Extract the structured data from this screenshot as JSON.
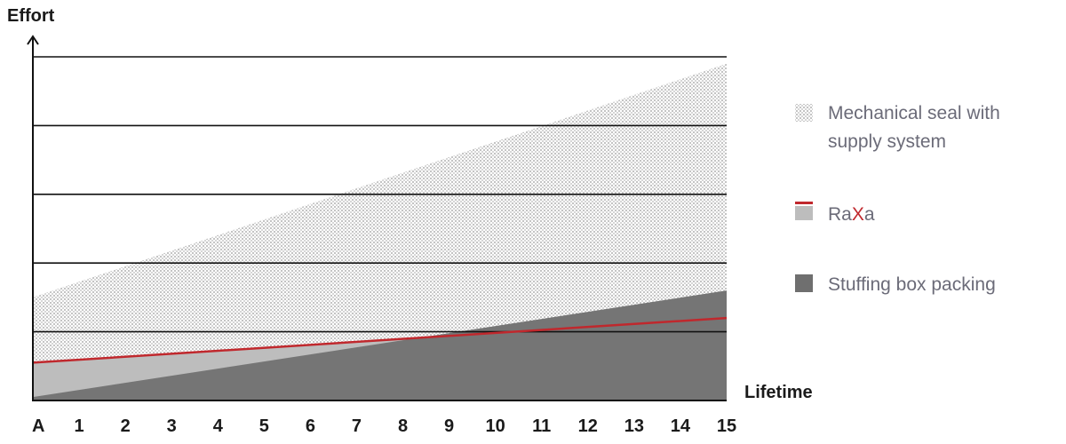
{
  "chart_data": {
    "type": "area",
    "ylabel": "Effort",
    "xlabel": "Lifetime",
    "x_ticks": [
      "A",
      "1",
      "2",
      "3",
      "4",
      "5",
      "6",
      "7",
      "8",
      "9",
      "10",
      "11",
      "12",
      "13",
      "14",
      "15"
    ],
    "x": [
      0,
      15
    ],
    "xlim": [
      0,
      15
    ],
    "ylim": [
      0,
      5
    ],
    "grid": "horizontal",
    "gridlines": [
      1,
      2,
      3,
      4,
      5
    ],
    "legend_position": "right",
    "series": [
      {
        "name": "Mechanical seal with supply system",
        "name_lines": [
          "Mechanical seal with",
          "supply system"
        ],
        "style": "dotted-area",
        "color": "#c8c8c8",
        "y": [
          1.5,
          4.9
        ]
      },
      {
        "name": "RaXa",
        "name_parts": [
          "Ra",
          "X",
          "a"
        ],
        "style": "line-with-area",
        "line_color": "#c0282d",
        "color": "#bdbdbd",
        "y": [
          0.55,
          1.2
        ]
      },
      {
        "name": "Stuffing box packing",
        "style": "area",
        "color": "#757575",
        "y": [
          0.05,
          1.6
        ]
      }
    ]
  }
}
